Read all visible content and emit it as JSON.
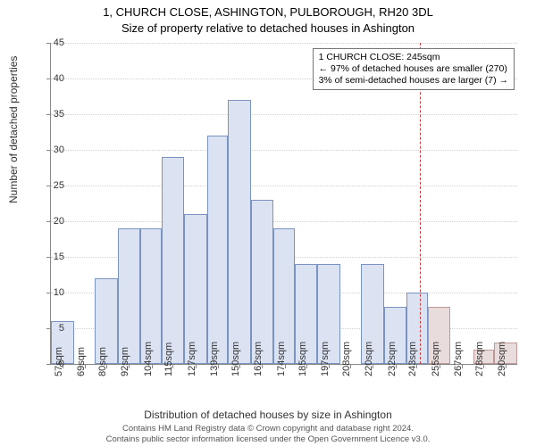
{
  "title": "1, CHURCH CLOSE, ASHINGTON, PULBOROUGH, RH20 3DL",
  "subtitle": "Size of property relative to detached houses in Ashington",
  "y_axis_label": "Number of detached properties",
  "x_axis_label": "Distribution of detached houses by size in Ashington",
  "footer_line1": "Contains HM Land Registry data © Crown copyright and database right 2024.",
  "footer_line2": "Contains public sector information licensed under the Open Government Licence v3.0.",
  "annotation": {
    "line1": "1 CHURCH CLOSE: 245sqm",
    "line2": "← 97% of detached houses are smaller (270)",
    "line3": "3% of semi-detached houses are larger (7) →"
  },
  "chart": {
    "type": "histogram",
    "ylim": [
      0,
      45
    ],
    "ytick_step": 5,
    "background_color": "#ffffff",
    "grid_color": "#cfcfcf",
    "bar_fill": "#dbe3f2",
    "bar_fill_after": "#e9dcdc",
    "bar_border": "#7a93c0",
    "bar_border_after": "#c09797",
    "marker_color": "#d43b3b",
    "marker_x": 245,
    "x_min": 51,
    "x_max": 296,
    "xtick_labels": [
      "57sqm",
      "69sqm",
      "80sqm",
      "92sqm",
      "104sqm",
      "115sqm",
      "127sqm",
      "139sqm",
      "150sqm",
      "162sqm",
      "174sqm",
      "185sqm",
      "197sqm",
      "208sqm",
      "220sqm",
      "232sqm",
      "243sqm",
      "255sqm",
      "267sqm",
      "278sqm",
      "290sqm"
    ],
    "xtick_values": [
      57,
      69,
      80,
      92,
      104,
      115,
      127,
      139,
      150,
      162,
      174,
      185,
      197,
      208,
      220,
      232,
      243,
      255,
      267,
      278,
      290
    ],
    "bars": [
      {
        "x0": 51,
        "x1": 63,
        "y": 6
      },
      {
        "x0": 63,
        "x1": 74,
        "y": 0
      },
      {
        "x0": 74,
        "x1": 86,
        "y": 12
      },
      {
        "x0": 86,
        "x1": 98,
        "y": 19
      },
      {
        "x0": 98,
        "x1": 109,
        "y": 19
      },
      {
        "x0": 109,
        "x1": 121,
        "y": 29
      },
      {
        "x0": 121,
        "x1": 133,
        "y": 21
      },
      {
        "x0": 133,
        "x1": 144,
        "y": 32
      },
      {
        "x0": 144,
        "x1": 156,
        "y": 37
      },
      {
        "x0": 156,
        "x1": 168,
        "y": 23
      },
      {
        "x0": 168,
        "x1": 179,
        "y": 19
      },
      {
        "x0": 179,
        "x1": 191,
        "y": 14
      },
      {
        "x0": 191,
        "x1": 203,
        "y": 14
      },
      {
        "x0": 203,
        "x1": 214,
        "y": 0
      },
      {
        "x0": 214,
        "x1": 226,
        "y": 14
      },
      {
        "x0": 226,
        "x1": 238,
        "y": 8
      },
      {
        "x0": 238,
        "x1": 249,
        "y": 10
      },
      {
        "x0": 249,
        "x1": 261,
        "y": 8
      },
      {
        "x0": 261,
        "x1": 273,
        "y": 0
      },
      {
        "x0": 273,
        "x1": 284,
        "y": 2
      },
      {
        "x0": 284,
        "x1": 296,
        "y": 3
      }
    ]
  }
}
